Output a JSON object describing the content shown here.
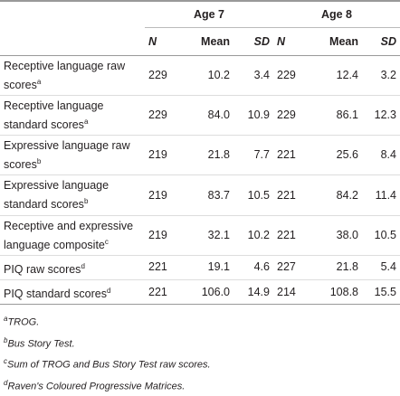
{
  "table": {
    "groups": [
      "Age 7",
      "Age 8"
    ],
    "columns": [
      "N",
      "Mean",
      "SD",
      "N",
      "Mean",
      "SD"
    ],
    "rows": [
      {
        "label": "Receptive language raw scores",
        "note": "a",
        "cells": [
          "229",
          "10.2",
          "3.4",
          "229",
          "12.4",
          "3.2"
        ]
      },
      {
        "label": "Receptive language standard scores",
        "note": "a",
        "cells": [
          "229",
          "84.0",
          "10.9",
          "229",
          "86.1",
          "12.3"
        ]
      },
      {
        "label": "Expressive language raw scores",
        "note": "b",
        "cells": [
          "219",
          "21.8",
          "7.7",
          "221",
          "25.6",
          "8.4"
        ]
      },
      {
        "label": "Expressive language standard scores",
        "note": "b",
        "cells": [
          "219",
          "83.7",
          "10.5",
          "221",
          "84.2",
          "11.4"
        ]
      },
      {
        "label": "Receptive and expressive language composite",
        "note": "c",
        "cells": [
          "219",
          "32.1",
          "10.2",
          "221",
          "38.0",
          "10.5"
        ]
      },
      {
        "label": "PIQ raw scores",
        "note": "d",
        "cells": [
          "221",
          "19.1",
          "4.6",
          "227",
          "21.8",
          "5.4"
        ]
      },
      {
        "label": "PIQ standard scores",
        "note": "d",
        "cells": [
          "221",
          "106.0",
          "14.9",
          "214",
          "108.8",
          "15.5"
        ]
      }
    ]
  },
  "footnotes": [
    {
      "mark": "a",
      "text": "TROG."
    },
    {
      "mark": "b",
      "text": "Bus Story Test."
    },
    {
      "mark": "c",
      "text": "Sum of TROG and Bus Story Test raw scores."
    },
    {
      "mark": "d",
      "text": "Raven's Coloured Progressive Matrices."
    }
  ]
}
